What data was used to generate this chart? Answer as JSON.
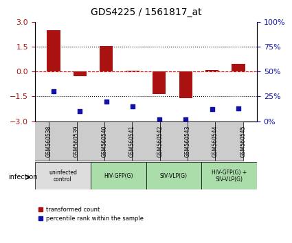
{
  "title": "GDS4225 / 1561817_at",
  "samples": [
    "GSM560538",
    "GSM560539",
    "GSM560540",
    "GSM560541",
    "GSM560542",
    "GSM560543",
    "GSM560544",
    "GSM560545"
  ],
  "transformed_count": [
    2.5,
    -0.3,
    1.55,
    0.05,
    -1.35,
    -1.6,
    0.1,
    0.45
  ],
  "percentile_rank": [
    30,
    10,
    20,
    15,
    2,
    2,
    12,
    13
  ],
  "bar_color": "#aa1111",
  "dot_color": "#1111aa",
  "ylim_left": [
    -3,
    3
  ],
  "ylim_right": [
    0,
    100
  ],
  "yticks_left": [
    -3,
    -1.5,
    0,
    1.5,
    3
  ],
  "yticks_right": [
    0,
    25,
    50,
    75,
    100
  ],
  "hline_y": [
    1.5,
    0,
    -1.5
  ],
  "hline_styles": [
    "dotted",
    "dashed",
    "dotted"
  ],
  "hline_colors": [
    "black",
    "red",
    "black"
  ],
  "groups": [
    {
      "label": "uninfected\ncontrol",
      "start": 0,
      "end": 2,
      "color": "#dddddd"
    },
    {
      "label": "HIV-GFP(G)",
      "start": 2,
      "end": 4,
      "color": "#aaddaa"
    },
    {
      "label": "SIV-VLP(G)",
      "start": 4,
      "end": 6,
      "color": "#aaddaa"
    },
    {
      "label": "HIV-GFP(G) +\nSIV-VLP(G)",
      "start": 6,
      "end": 8,
      "color": "#aaddaa"
    }
  ],
  "legend_bar_label": "transformed count",
  "legend_dot_label": "percentile rank within the sample",
  "infection_label": "infection",
  "background_color": "#ffffff",
  "tick_label_color_left": "#aa1111",
  "tick_label_color_right": "#1111aa"
}
